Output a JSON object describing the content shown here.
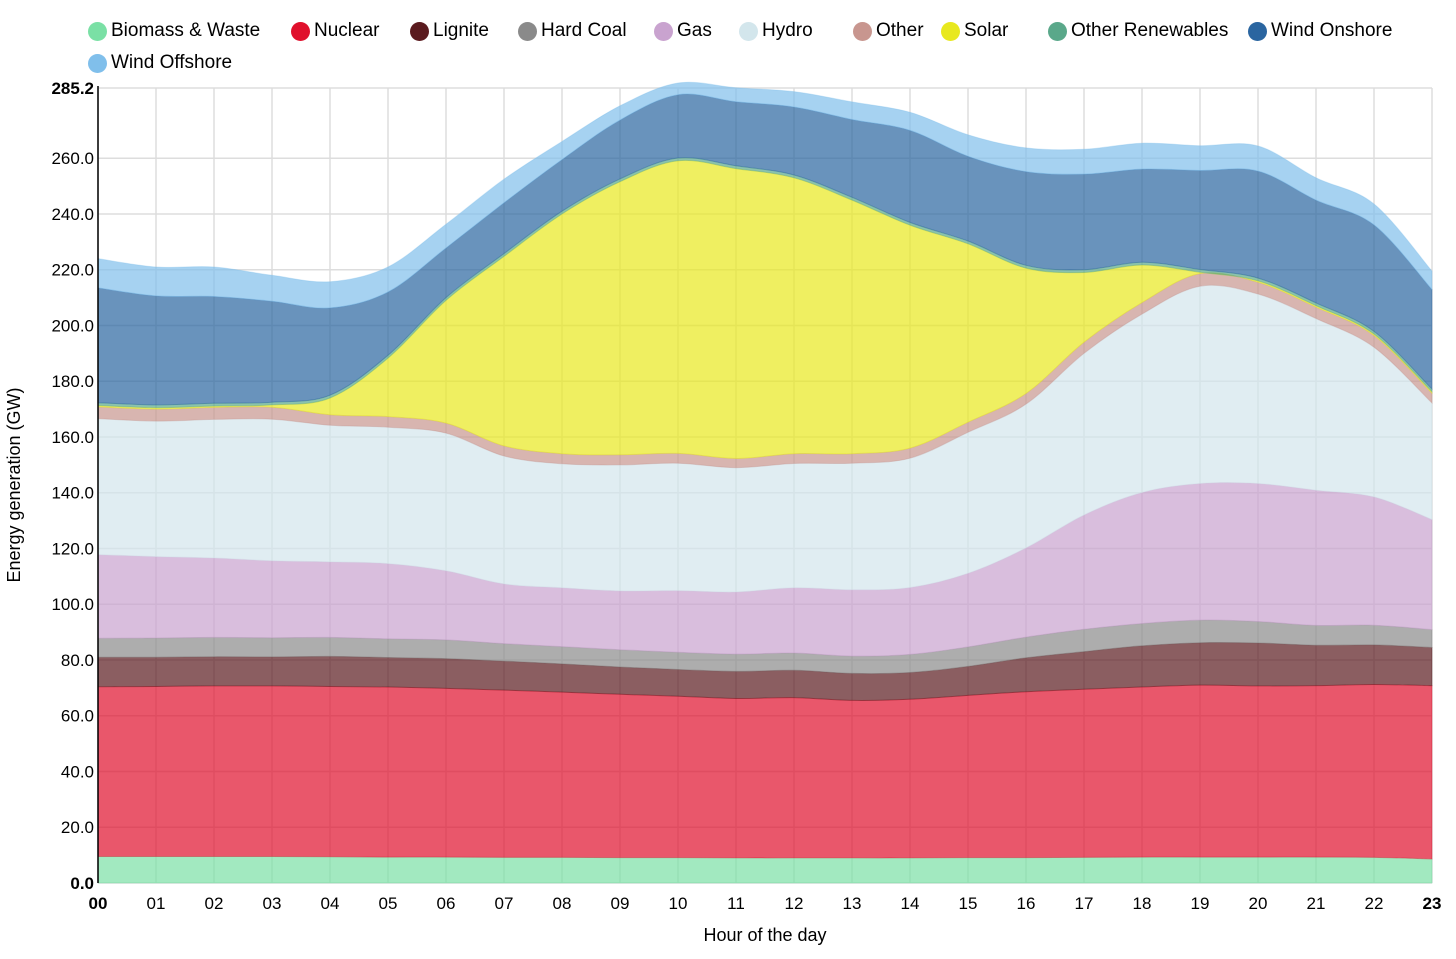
{
  "chart_data": {
    "type": "area",
    "stacked": true,
    "title": "",
    "xlabel": "Hour of the day",
    "ylabel": "Energy generation (GW)",
    "ylim": [
      0,
      285.2
    ],
    "yticks": [
      "0.0",
      "20.0",
      "40.0",
      "60.0",
      "80.0",
      "100.0",
      "120.0",
      "140.0",
      "160.0",
      "180.0",
      "200.0",
      "220.0",
      "240.0",
      "260.0",
      "285.2"
    ],
    "ytick_values": [
      0,
      20,
      40,
      60,
      80,
      100,
      120,
      140,
      160,
      180,
      200,
      220,
      240,
      260,
      285.2
    ],
    "categories": [
      "00",
      "01",
      "02",
      "03",
      "04",
      "05",
      "06",
      "07",
      "08",
      "09",
      "10",
      "11",
      "12",
      "13",
      "14",
      "15",
      "16",
      "17",
      "18",
      "19",
      "20",
      "21",
      "22",
      "23"
    ],
    "grid": true,
    "legend_position": "top",
    "series": [
      {
        "name": "Biomass & Waste",
        "color": "#7ae0a5",
        "values": [
          9.5,
          9.5,
          9.5,
          9.5,
          9.4,
          9.3,
          9.3,
          9.2,
          9.2,
          9.1,
          9.1,
          9.0,
          9.0,
          9.0,
          9.0,
          9.1,
          9.1,
          9.2,
          9.3,
          9.3,
          9.3,
          9.3,
          9.2,
          8.6
        ]
      },
      {
        "name": "Nuclear",
        "color": "#e0102c",
        "values": [
          60.9,
          61.0,
          61.2,
          61.2,
          61.1,
          61.0,
          60.5,
          60.0,
          59.3,
          58.6,
          57.9,
          57.2,
          57.5,
          56.5,
          56.9,
          58.2,
          59.5,
          60.3,
          61.0,
          61.7,
          61.4,
          61.5,
          62.0,
          62.2
        ]
      },
      {
        "name": "Lignite",
        "color": "#5a1a1e",
        "values": [
          10.6,
          10.5,
          10.5,
          10.4,
          10.8,
          10.6,
          10.7,
          10.4,
          10.1,
          9.8,
          9.6,
          9.7,
          9.8,
          9.7,
          9.6,
          10.4,
          12.2,
          13.5,
          14.8,
          15.2,
          15.4,
          14.5,
          14.2,
          13.7
        ]
      },
      {
        "name": "Hard Coal",
        "color": "#8a8a8a",
        "values": [
          6.8,
          6.9,
          6.9,
          6.9,
          6.8,
          6.7,
          6.7,
          6.3,
          6.2,
          6.2,
          6.2,
          6.2,
          6.2,
          6.2,
          6.5,
          7.0,
          7.4,
          8.0,
          8.0,
          8.1,
          7.7,
          7.1,
          7.1,
          6.4
        ]
      },
      {
        "name": "Gas",
        "color": "#c9a3cf",
        "values": [
          30.0,
          29.2,
          28.5,
          27.6,
          27.1,
          27.0,
          24.8,
          21.4,
          21.1,
          21.1,
          22.1,
          22.3,
          23.4,
          23.8,
          24.0,
          26.4,
          32.0,
          41.0,
          47.0,
          49.0,
          49.5,
          48.5,
          46.0,
          39.5
        ]
      },
      {
        "name": "Hydro",
        "color": "#d3e6ec",
        "values": [
          48.8,
          48.6,
          49.7,
          50.8,
          49.0,
          48.9,
          49.4,
          45.9,
          44.5,
          45.2,
          45.7,
          44.6,
          44.6,
          45.4,
          46.4,
          50.6,
          51.6,
          58.0,
          64.0,
          70.8,
          68.0,
          61.6,
          53.7,
          41.8
        ]
      },
      {
        "name": "Other",
        "color": "#c8968f",
        "values": [
          4.2,
          4.3,
          4.3,
          4.3,
          3.8,
          3.8,
          3.6,
          3.6,
          3.6,
          3.6,
          3.5,
          3.3,
          3.5,
          3.4,
          3.6,
          3.6,
          3.8,
          4.0,
          4.1,
          4.5,
          4.2,
          4.1,
          4.2,
          3.5
        ]
      },
      {
        "name": "Solar",
        "color": "#e8e81e",
        "values": [
          0.5,
          0.5,
          0.5,
          0.8,
          6.0,
          21.0,
          44.0,
          68.0,
          86.0,
          98.0,
          105.0,
          104.0,
          99.0,
          91.0,
          80.0,
          64.0,
          45.0,
          25.0,
          13.5,
          0.5,
          0.5,
          0.5,
          0.5,
          0.5
        ]
      },
      {
        "name": "Other Renewables",
        "color": "#5aa88a",
        "values": [
          1.0,
          1.0,
          1.0,
          1.0,
          1.0,
          1.0,
          1.0,
          1.0,
          1.0,
          1.0,
          1.0,
          1.0,
          1.0,
          1.0,
          1.0,
          1.0,
          1.0,
          1.0,
          1.0,
          1.0,
          1.0,
          1.0,
          1.0,
          1.0
        ]
      },
      {
        "name": "Wind Onshore",
        "color": "#2a65a0",
        "values": [
          41.2,
          39.1,
          38.3,
          36.2,
          31.3,
          22.7,
          17.8,
          18.2,
          18.5,
          21.1,
          22.7,
          23.0,
          24.4,
          27.9,
          33.0,
          30.4,
          33.6,
          34.3,
          33.4,
          35.5,
          38.4,
          36.9,
          38.2,
          35.7
        ]
      },
      {
        "name": "Wind Offshore",
        "color": "#80bfeb",
        "values": [
          10.5,
          10.4,
          10.6,
          9.3,
          9.4,
          9.0,
          8.5,
          8.5,
          6.5,
          5.1,
          4.2,
          5.0,
          5.5,
          6.3,
          6.5,
          7.7,
          8.5,
          8.9,
          9.3,
          8.9,
          9.0,
          8.0,
          7.5,
          6.6
        ]
      }
    ]
  }
}
